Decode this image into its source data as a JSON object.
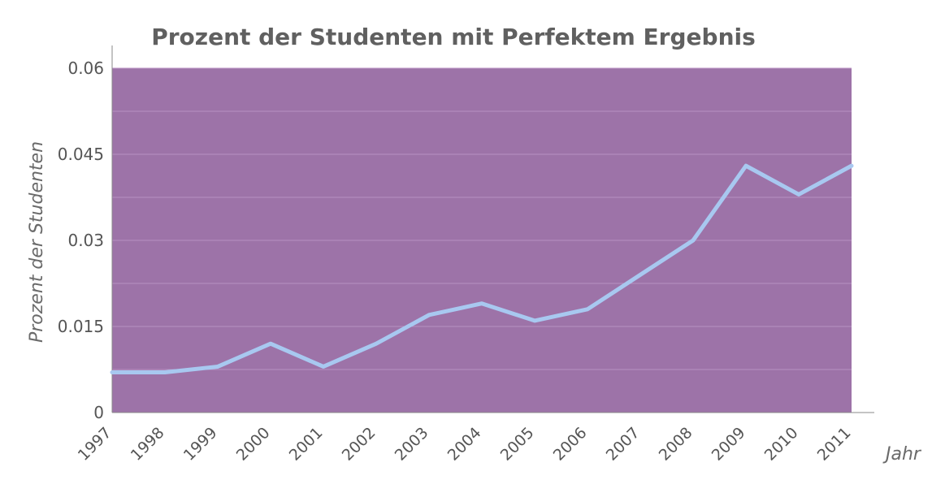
{
  "chart_data": {
    "type": "line",
    "title": "Prozent der Studenten mit Perfektem Ergebnis",
    "xlabel": "Jahr",
    "ylabel": "Prozent der Studenten",
    "categories": [
      "1997",
      "1998",
      "1999",
      "2000",
      "2001",
      "2002",
      "2003",
      "2004",
      "2005",
      "2006",
      "2007",
      "2008",
      "2009",
      "2010",
      "2011"
    ],
    "series": [
      {
        "values": [
          0.007,
          0.007,
          0.008,
          0.012,
          0.008,
          0.012,
          0.017,
          0.019,
          0.016,
          0.018,
          0.024,
          0.03,
          0.043,
          0.038,
          0.043
        ]
      }
    ],
    "ylim": [
      0,
      0.06
    ],
    "yticks": [
      0,
      0.015,
      0.03,
      0.045,
      0.06
    ],
    "ytick_labels": [
      "0",
      "0.015",
      "0.03",
      "0.045",
      "0.06"
    ],
    "grid": true,
    "colors": {
      "plot_background": "#9d73a8",
      "line": "#a8c8f0",
      "grid": "#b892c2"
    }
  }
}
